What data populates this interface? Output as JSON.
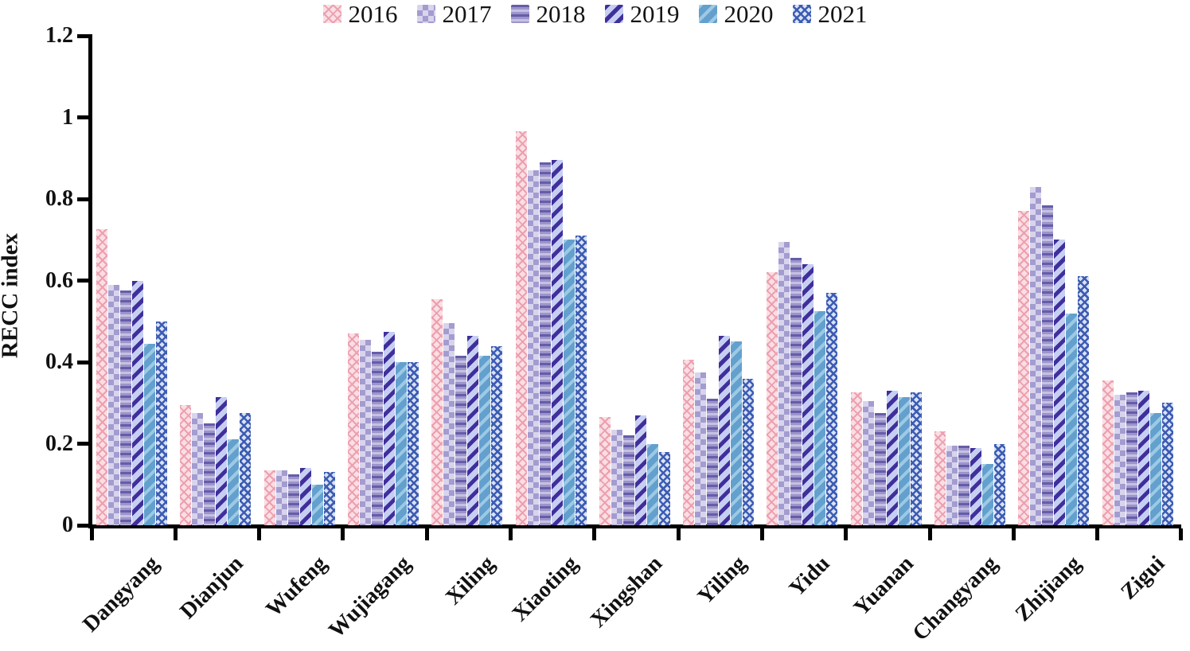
{
  "chart_data": {
    "type": "bar",
    "title": "",
    "xlabel": "",
    "ylabel": "RECC index",
    "ylim": [
      0,
      1.2
    ],
    "yticks": [
      0,
      0.2,
      0.4,
      0.6,
      0.8,
      1,
      1.2
    ],
    "ytick_labels": [
      "0",
      "0.2",
      "0.4",
      "0.6",
      "0.8",
      "1",
      "1.2"
    ],
    "grid": false,
    "legend_position": "top-center",
    "categories": [
      "Dangyang",
      "Dianjun",
      "Wufeng",
      "Wujiagang",
      "Xiling",
      "Xiaoting",
      "Xingshan",
      "Yiling",
      "Yidu",
      "Yuanan",
      "Changyang",
      "Zhijiang",
      "Zigui"
    ],
    "series": [
      {
        "name": "2016",
        "pattern": "pink-lattice",
        "base": "#fadee4",
        "accent": "#ec9fae",
        "light": "#fdeef1",
        "values": [
          0.725,
          0.295,
          0.135,
          0.47,
          0.555,
          0.965,
          0.265,
          0.405,
          0.62,
          0.325,
          0.23,
          0.77,
          0.355
        ]
      },
      {
        "name": "2017",
        "pattern": "checker",
        "base": "#d8d4ec",
        "accent": "#a39cd0",
        "light": "#d8d4ec",
        "values": [
          0.59,
          0.275,
          0.135,
          0.455,
          0.495,
          0.87,
          0.235,
          0.375,
          0.695,
          0.305,
          0.195,
          0.83,
          0.32
        ]
      },
      {
        "name": "2018",
        "pattern": "hstripe",
        "base": "#9c95cb",
        "accent": "#655da9",
        "light": "#c6c1e2",
        "values": [
          0.575,
          0.25,
          0.125,
          0.425,
          0.415,
          0.89,
          0.22,
          0.31,
          0.655,
          0.275,
          0.195,
          0.785,
          0.325
        ]
      },
      {
        "name": "2019",
        "pattern": "diag-bold",
        "base": "#c6cff2",
        "accent": "#402f9b",
        "light": "#c6cff2",
        "values": [
          0.6,
          0.315,
          0.14,
          0.475,
          0.465,
          0.895,
          0.27,
          0.465,
          0.64,
          0.33,
          0.19,
          0.7,
          0.33
        ]
      },
      {
        "name": "2020",
        "pattern": "diag-soft",
        "base": "#63a0cd",
        "accent": "#9dc9e5",
        "light": "#9dc9e5",
        "values": [
          0.445,
          0.21,
          0.1,
          0.4,
          0.415,
          0.7,
          0.2,
          0.45,
          0.525,
          0.315,
          0.15,
          0.52,
          0.275
        ]
      },
      {
        "name": "2021",
        "pattern": "crosshatch",
        "base": "#d9e1f6",
        "accent": "#3c5cb2",
        "light": "#d9e1f6",
        "values": [
          0.5,
          0.275,
          0.13,
          0.4,
          0.44,
          0.71,
          0.18,
          0.36,
          0.57,
          0.325,
          0.2,
          0.61,
          0.3
        ]
      }
    ]
  },
  "axis": {
    "color": "#000000"
  }
}
